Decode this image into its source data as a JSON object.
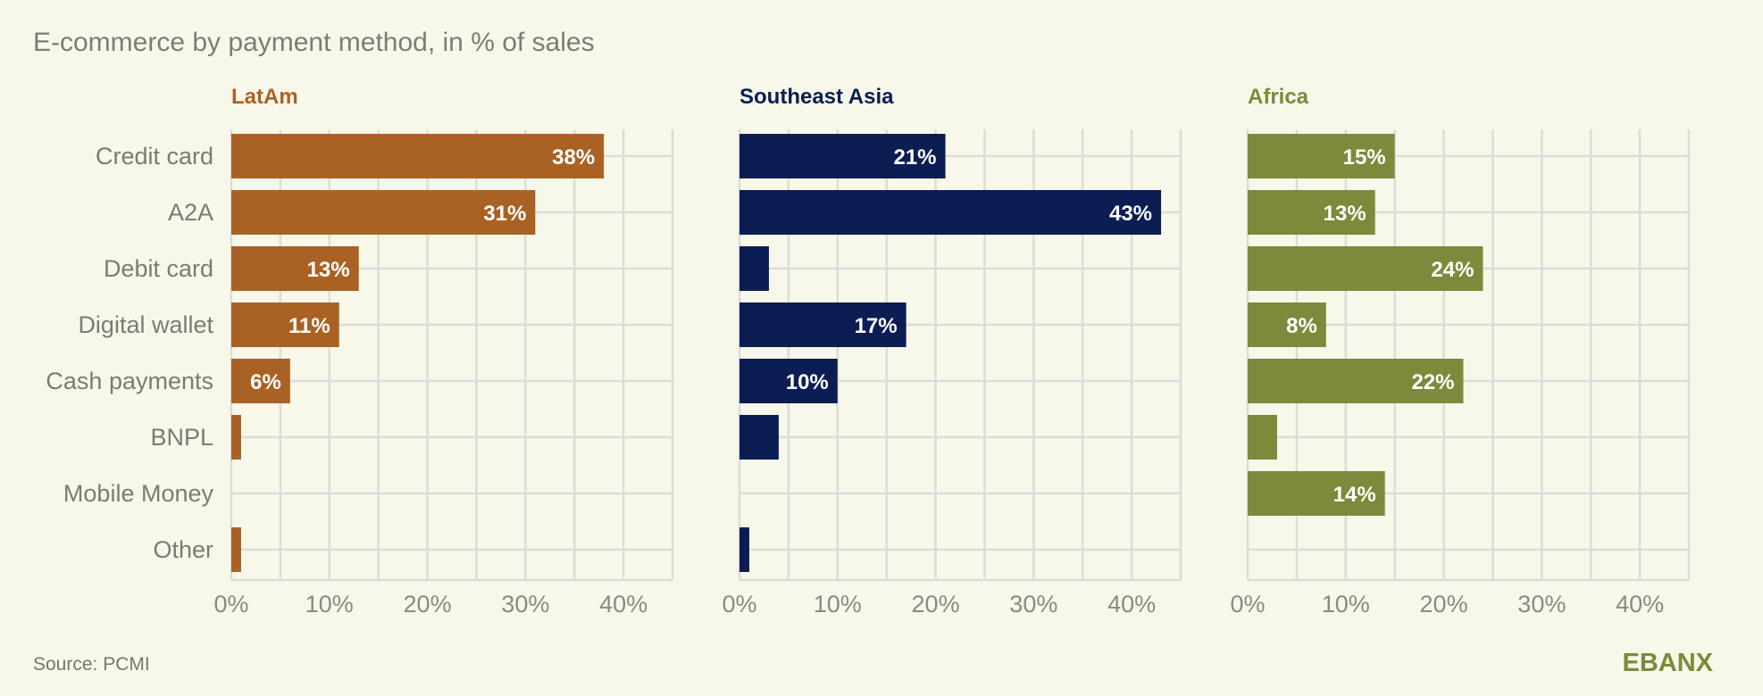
{
  "chart_data": {
    "type": "bar",
    "orientation": "horizontal",
    "title": "E-commerce by payment method, in % of sales",
    "source": "Source: PCMI",
    "logo": "EBANX",
    "xlim": [
      0,
      45
    ],
    "ticks": [
      "0%",
      "10%",
      "20%",
      "30%",
      "40%"
    ],
    "tick_values": [
      0,
      10,
      20,
      30,
      40
    ],
    "categories": [
      "Credit card",
      "A2A",
      "Debit card",
      "Digital wallet",
      "Cash payments",
      "BNPL",
      "Mobile Money",
      "Other"
    ],
    "series": [
      {
        "name": "LatAm",
        "color": "#aa6224",
        "values": [
          38,
          31,
          13,
          11,
          6,
          1,
          0,
          1
        ],
        "labels": [
          "38%",
          "31%",
          "13%",
          "11%",
          "6%",
          "",
          "",
          ""
        ]
      },
      {
        "name": "Southeast Asia",
        "color": "#0b1d52",
        "values": [
          21,
          43,
          3,
          17,
          10,
          4,
          0,
          1
        ],
        "labels": [
          "21%",
          "43%",
          "",
          "17%",
          "10%",
          "",
          "",
          ""
        ]
      },
      {
        "name": "Africa",
        "color": "#7c8a3b",
        "values": [
          15,
          13,
          24,
          8,
          22,
          3,
          14,
          0
        ],
        "labels": [
          "15%",
          "13%",
          "24%",
          "8%",
          "22%",
          "",
          "14%",
          ""
        ]
      }
    ]
  }
}
